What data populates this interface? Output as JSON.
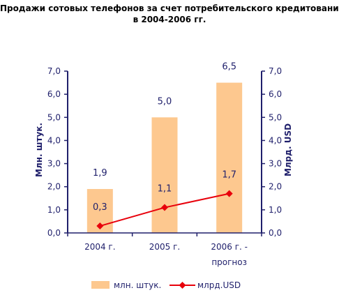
{
  "chart_data": {
    "type": "bar",
    "title_lines": [
      "Продажи сотовых телефонов за счет потребительского кредитования",
      "в 2004-2006 гг."
    ],
    "categories": [
      [
        "2004 г."
      ],
      [
        "2005 г."
      ],
      [
        "2006 г. -",
        "прогноз"
      ]
    ],
    "series": [
      {
        "name": "млн. штук.",
        "type": "bar",
        "axis": "left",
        "values": [
          1.9,
          5.0,
          6.5
        ],
        "labels": [
          "1,9",
          "5,0",
          "6,5"
        ],
        "color": "#fdc88f"
      },
      {
        "name": "млрд.USD",
        "type": "line",
        "axis": "right",
        "values": [
          0.3,
          1.1,
          1.7
        ],
        "labels": [
          "0,3",
          "1,1",
          "1,7"
        ],
        "color": "#e8000b"
      }
    ],
    "ylabel_left": "Млн. штук.",
    "ylabel_right": "Млрд. USD",
    "ylim": [
      0,
      7
    ],
    "y_ticks": [
      "0,0",
      "1,0",
      "2,0",
      "3,0",
      "4,0",
      "5,0",
      "6,0",
      "7,0"
    ],
    "axis_color": "#1f1f6b",
    "grid": false,
    "legend_position": "bottom"
  }
}
